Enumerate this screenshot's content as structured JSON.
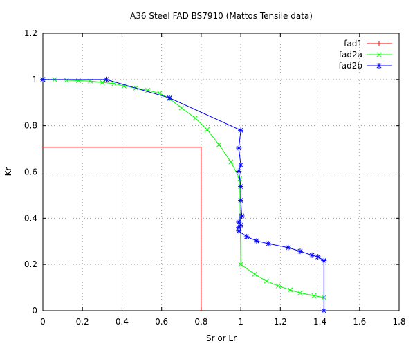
{
  "chart_data": {
    "type": "line",
    "title": "A36 Steel FAD BS7910 (Mattos Tensile data)",
    "xlabel": "Sr  or  Lr",
    "ylabel": "Kr",
    "xlim": [
      0,
      1.8
    ],
    "ylim": [
      0,
      1.2
    ],
    "xticks": [
      "0",
      "0.2",
      "0.4",
      "0.6",
      "0.8",
      "1",
      "1.2",
      "1.4",
      "1.6",
      "1.8"
    ],
    "yticks": [
      "0",
      "0.2",
      "0.4",
      "0.6",
      "0.8",
      "1",
      "1.2"
    ],
    "grid": true,
    "legend_position": "top-right",
    "series": [
      {
        "name": "fad1",
        "color": "#ff0000",
        "marker": "plus",
        "points": [
          [
            0,
            0.707
          ],
          [
            0.8,
            0.707
          ],
          [
            0.8,
            0
          ]
        ]
      },
      {
        "name": "fad2a",
        "color": "#00ff00",
        "marker": "x",
        "points": [
          [
            0.0,
            1.0
          ],
          [
            0.06,
            1.0
          ],
          [
            0.12,
            0.997
          ],
          [
            0.18,
            0.995
          ],
          [
            0.24,
            0.993
          ],
          [
            0.3,
            0.987
          ],
          [
            0.36,
            0.982
          ],
          [
            0.41,
            0.972
          ],
          [
            0.47,
            0.963
          ],
          [
            0.53,
            0.953
          ],
          [
            0.59,
            0.94
          ],
          [
            0.64,
            0.917
          ],
          [
            0.7,
            0.877
          ],
          [
            0.77,
            0.833
          ],
          [
            0.83,
            0.783
          ],
          [
            0.89,
            0.718
          ],
          [
            0.95,
            0.643
          ],
          [
            0.995,
            0.57
          ],
          [
            1.0,
            0.2
          ],
          [
            1.07,
            0.158
          ],
          [
            1.13,
            0.128
          ],
          [
            1.19,
            0.107
          ],
          [
            1.25,
            0.09
          ],
          [
            1.3,
            0.077
          ],
          [
            1.37,
            0.065
          ],
          [
            1.42,
            0.057
          ]
        ]
      },
      {
        "name": "fad2b",
        "color": "#0000ff",
        "marker": "star",
        "points": [
          [
            0.0,
            1.0
          ],
          [
            0.32,
            1.0
          ],
          [
            0.64,
            0.92
          ],
          [
            1.0,
            0.78
          ],
          [
            0.99,
            0.703
          ],
          [
            1.0,
            0.63
          ],
          [
            0.99,
            0.603
          ],
          [
            1.0,
            0.537
          ],
          [
            1.0,
            0.477
          ],
          [
            1.005,
            0.41
          ],
          [
            0.99,
            0.383
          ],
          [
            1.0,
            0.37
          ],
          [
            0.99,
            0.36
          ],
          [
            0.99,
            0.345
          ],
          [
            1.03,
            0.32
          ],
          [
            1.08,
            0.302
          ],
          [
            1.14,
            0.29
          ],
          [
            1.24,
            0.273
          ],
          [
            1.3,
            0.257
          ],
          [
            1.36,
            0.24
          ],
          [
            1.39,
            0.233
          ],
          [
            1.42,
            0.217
          ],
          [
            1.42,
            0.0
          ]
        ]
      }
    ]
  }
}
